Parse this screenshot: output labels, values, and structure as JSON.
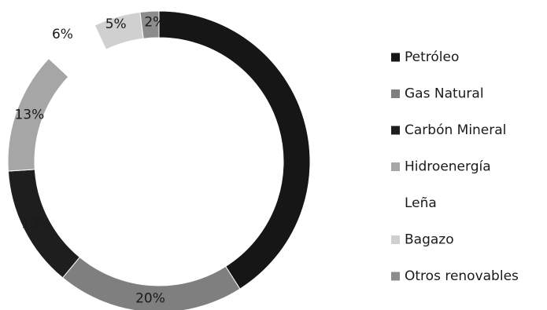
{
  "chart_data": {
    "type": "pie",
    "style": "donut",
    "slices": [
      {
        "label": "Petróleo",
        "value": 41,
        "display": "",
        "color": "#161616"
      },
      {
        "label": "Gas Natural",
        "value": 20,
        "display": "20%",
        "color": "#7f7f7f"
      },
      {
        "label": "Carbón Mineral",
        "value": 13,
        "display": "13%",
        "color": "#1e1e1e"
      },
      {
        "label": "Hidroenergía",
        "value": 13,
        "display": "13%",
        "color": "#a6a6a6"
      },
      {
        "label": "Leña",
        "value": 6,
        "display": "6%",
        "color": "#ffffff"
      },
      {
        "label": "Bagazo",
        "value": 5,
        "display": "5%",
        "color": "#d0d0d0"
      },
      {
        "label": "Otros renovables",
        "value": 2,
        "display": "2%",
        "color": "#8c8c8c"
      }
    ],
    "legend_position": "right"
  }
}
